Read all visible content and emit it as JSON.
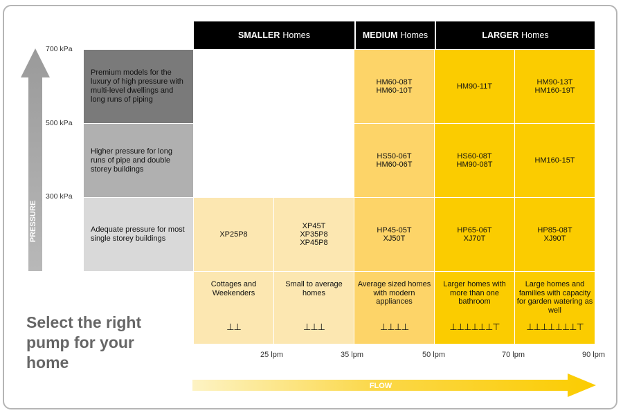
{
  "chart_data": {
    "type": "table",
    "title": "Select the right pump for your home",
    "x_axis": {
      "label": "FLOW",
      "ticks": [
        "25 lpm",
        "35 lpm",
        "50 lpm",
        "70 lpm",
        "90 lpm"
      ]
    },
    "y_axis": {
      "label": "PRESSURE",
      "ticks": [
        "700 kPa",
        "500 kPa",
        "300 kPa"
      ]
    },
    "column_groups": [
      {
        "bold": "SMALLER",
        "rest": "Homes"
      },
      {
        "bold": "MEDIUM",
        "rest": "Homes"
      },
      {
        "bold": "LARGER",
        "rest": "Homes"
      }
    ],
    "pressure_rows": [
      {
        "description": "Premium models for the luxury of high pressure with multi-level dwellings and long runs of piping"
      },
      {
        "description": "Higher pressure for long runs of pipe and double storey buildings"
      },
      {
        "description": "Adequate pressure for most single storey buildings"
      }
    ],
    "cells": [
      [
        [],
        [],
        [
          "HM60-08T",
          "HM60-10T"
        ],
        [
          "HM90-11T"
        ],
        [
          "HM90-13T",
          "HM160-19T"
        ]
      ],
      [
        [],
        [],
        [
          "HS50-06T",
          "HM60-06T"
        ],
        [
          "HS60-08T",
          "HM90-08T"
        ],
        [
          "HM160-15T"
        ]
      ],
      [
        [
          "XP25P8"
        ],
        [
          "XP45T",
          "XP35P8",
          "XP45P8"
        ],
        [
          "HP45-05T",
          "XJ50T"
        ],
        [
          "HP65-06T",
          "XJ70T"
        ],
        [
          "HP85-08T",
          "XJ90T"
        ]
      ]
    ],
    "home_types": [
      {
        "text": "Cottages and Weekenders",
        "outlets": 2
      },
      {
        "text": "Small to average homes",
        "outlets": 3
      },
      {
        "text": "Average sized homes with modern appliances",
        "outlets": 4
      },
      {
        "text": "Larger homes with more than one bathroom",
        "outlets": 7
      },
      {
        "text": "Large homes and families with capacity for garden watering as well",
        "outlets": 8
      }
    ]
  },
  "headline": [
    "Select the right",
    "pump for your",
    "home"
  ],
  "colors": {
    "header_bg": "#000000",
    "row_dark": "#7a7a7a",
    "row_mid": "#b0b0b0",
    "row_light": "#d9d9d9",
    "smaller": "#fce7b1",
    "medium": "#fdd468",
    "larger": "#fbcc00",
    "arrow_grey": "#b5b5b5",
    "flow_arrow": "#fbcc00"
  }
}
